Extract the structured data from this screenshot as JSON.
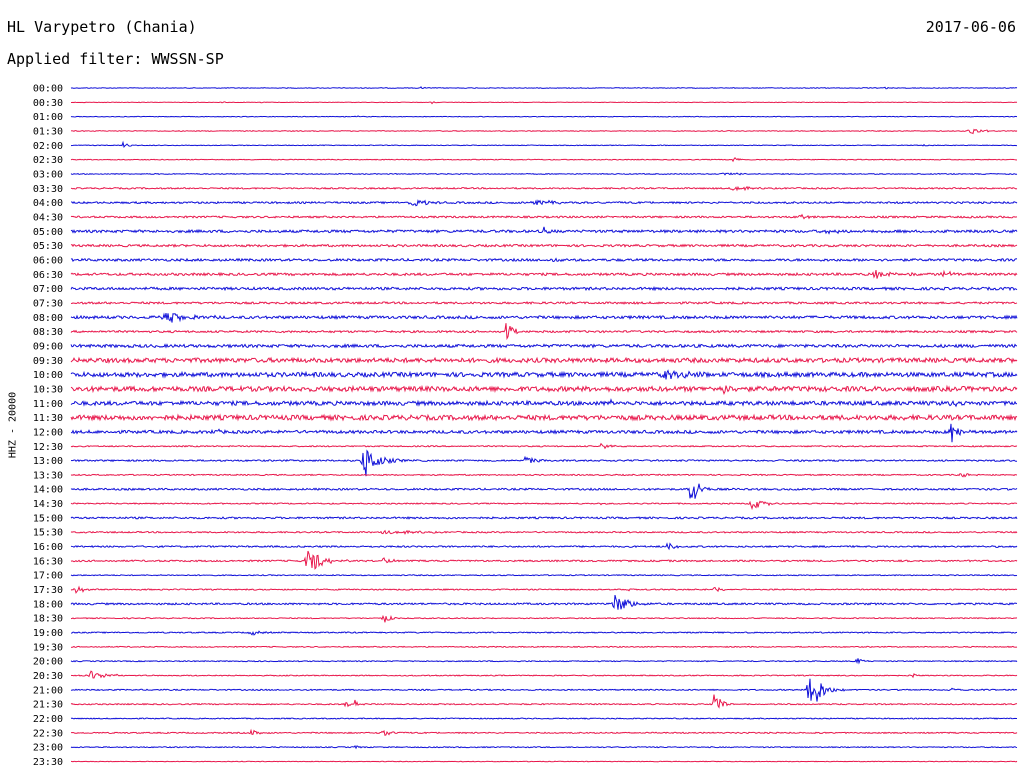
{
  "header": {
    "station": "HL Varypetro (Chania)",
    "date": "2017-06-06",
    "filter": "Applied filter: WWSSN-SP"
  },
  "chart_data": {
    "type": "line",
    "ylabel": "HHZ - 20000",
    "colors": [
      "#1010d8",
      "#e8184c"
    ],
    "rows": [
      {
        "label": "00:00",
        "noise": 0.35,
        "events": [
          {
            "x": 0.37,
            "amp": 1.5,
            "width": 0.003
          },
          {
            "x": 0.86,
            "amp": 1.2,
            "width": 0.003
          }
        ]
      },
      {
        "label": "00:30",
        "noise": 0.25,
        "events": [
          {
            "x": 0.16,
            "amp": 1.3,
            "width": 0.003
          },
          {
            "x": 0.2,
            "amp": 1.2,
            "width": 0.003
          },
          {
            "x": 0.38,
            "amp": 1.6,
            "width": 0.004
          },
          {
            "x": 0.52,
            "amp": 1.2,
            "width": 0.003
          }
        ]
      },
      {
        "label": "01:00",
        "noise": 0.3,
        "events": [
          {
            "x": 0.3,
            "amp": 1.4,
            "width": 0.004
          }
        ]
      },
      {
        "label": "01:30",
        "noise": 0.4,
        "events": [
          {
            "x": 0.95,
            "amp": 5,
            "width": 0.009
          }
        ]
      },
      {
        "label": "02:00",
        "noise": 0.35,
        "events": [
          {
            "x": 0.055,
            "amp": 4,
            "width": 0.004
          },
          {
            "x": 0.9,
            "amp": 1.3,
            "width": 0.004
          }
        ]
      },
      {
        "label": "02:30",
        "noise": 0.4,
        "events": [
          {
            "x": 0.7,
            "amp": 4,
            "width": 0.005
          }
        ]
      },
      {
        "label": "03:00",
        "noise": 0.45,
        "events": [
          {
            "x": 0.69,
            "amp": 2.5,
            "width": 0.01
          }
        ]
      },
      {
        "label": "03:30",
        "noise": 0.7,
        "events": [
          {
            "x": 0.7,
            "amp": 3,
            "width": 0.012
          }
        ]
      },
      {
        "label": "04:00",
        "noise": 0.9,
        "events": [
          {
            "x": 0.36,
            "amp": 5,
            "width": 0.012
          },
          {
            "x": 0.49,
            "amp": 2.5,
            "width": 0.02
          }
        ]
      },
      {
        "label": "04:30",
        "noise": 0.9,
        "events": [
          {
            "x": 0.77,
            "amp": 3,
            "width": 0.006
          }
        ]
      },
      {
        "label": "05:00",
        "noise": 1.3,
        "events": [
          {
            "x": 0.5,
            "amp": 4,
            "width": 0.004
          },
          {
            "x": 0.8,
            "amp": 2,
            "width": 0.02
          }
        ]
      },
      {
        "label": "05:30",
        "noise": 1.1,
        "events": []
      },
      {
        "label": "06:00",
        "noise": 1.2,
        "events": [
          {
            "x": 0.51,
            "amp": 4,
            "width": 0.005
          }
        ]
      },
      {
        "label": "06:30",
        "noise": 1.2,
        "events": [
          {
            "x": 0.85,
            "amp": 4,
            "width": 0.02
          },
          {
            "x": 0.92,
            "amp": 4,
            "width": 0.012
          }
        ]
      },
      {
        "label": "07:00",
        "noise": 1.3,
        "events": []
      },
      {
        "label": "07:30",
        "noise": 1.0,
        "events": []
      },
      {
        "label": "08:00",
        "noise": 1.4,
        "events": [
          {
            "x": 0.1,
            "amp": 6,
            "width": 0.02
          }
        ]
      },
      {
        "label": "08:30",
        "noise": 1.0,
        "events": [
          {
            "x": 0.46,
            "amp": 11,
            "width": 0.006
          }
        ]
      },
      {
        "label": "09:00",
        "noise": 1.5,
        "events": []
      },
      {
        "label": "09:30",
        "noise": 2.2,
        "events": []
      },
      {
        "label": "10:00",
        "noise": 2.2,
        "events": [
          {
            "x": 0.63,
            "amp": 4,
            "width": 0.03
          }
        ]
      },
      {
        "label": "10:30",
        "noise": 2.4,
        "events": [
          {
            "x": 0.69,
            "amp": 6,
            "width": 0.006
          }
        ]
      },
      {
        "label": "11:00",
        "noise": 2.0,
        "events": [
          {
            "x": 0.57,
            "amp": 5,
            "width": 0.006
          },
          {
            "x": 0.93,
            "amp": 3,
            "width": 0.01
          }
        ]
      },
      {
        "label": "11:30",
        "noise": 2.4,
        "events": []
      },
      {
        "label": "12:00",
        "noise": 1.5,
        "events": [
          {
            "x": 0.15,
            "amp": 4,
            "width": 0.006
          },
          {
            "x": 0.93,
            "amp": 13,
            "width": 0.008
          }
        ]
      },
      {
        "label": "12:30",
        "noise": 0.6,
        "events": [
          {
            "x": 0.56,
            "amp": 3,
            "width": 0.008
          }
        ]
      },
      {
        "label": "13:00",
        "noise": 0.8,
        "events": [
          {
            "x": 0.31,
            "amp": 20,
            "width": 0.012
          },
          {
            "x": 0.48,
            "amp": 4,
            "width": 0.01
          }
        ]
      },
      {
        "label": "13:30",
        "noise": 0.6,
        "events": [
          {
            "x": 0.94,
            "amp": 3,
            "width": 0.008
          }
        ]
      },
      {
        "label": "14:00",
        "noise": 0.9,
        "events": [
          {
            "x": 0.655,
            "amp": 22,
            "width": 0.007
          }
        ]
      },
      {
        "label": "14:30",
        "noise": 0.6,
        "events": [
          {
            "x": 0.72,
            "amp": 6,
            "width": 0.012
          },
          {
            "x": 0.56,
            "amp": 1.5,
            "width": 0.003
          }
        ]
      },
      {
        "label": "15:00",
        "noise": 0.9,
        "events": []
      },
      {
        "label": "15:30",
        "noise": 0.7,
        "events": [
          {
            "x": 0.33,
            "amp": 2,
            "width": 0.03
          }
        ]
      },
      {
        "label": "16:00",
        "noise": 0.8,
        "events": [
          {
            "x": 0.63,
            "amp": 4,
            "width": 0.008
          }
        ]
      },
      {
        "label": "16:30",
        "noise": 0.8,
        "events": [
          {
            "x": 0.25,
            "amp": 16,
            "width": 0.012
          },
          {
            "x": 0.33,
            "amp": 4,
            "width": 0.008
          }
        ]
      },
      {
        "label": "17:00",
        "noise": 0.5,
        "events": []
      },
      {
        "label": "17:30",
        "noise": 0.6,
        "events": [
          {
            "x": 0.005,
            "amp": 4,
            "width": 0.008
          },
          {
            "x": 0.59,
            "amp": 2,
            "width": 0.004
          },
          {
            "x": 0.68,
            "amp": 3,
            "width": 0.008
          }
        ]
      },
      {
        "label": "18:00",
        "noise": 0.9,
        "events": [
          {
            "x": 0.575,
            "amp": 12,
            "width": 0.012
          }
        ]
      },
      {
        "label": "18:30",
        "noise": 0.5,
        "events": [
          {
            "x": 0.33,
            "amp": 6,
            "width": 0.006
          }
        ]
      },
      {
        "label": "19:00",
        "noise": 0.6,
        "events": [
          {
            "x": 0.19,
            "amp": 3,
            "width": 0.008
          }
        ]
      },
      {
        "label": "19:30",
        "noise": 0.5,
        "events": []
      },
      {
        "label": "20:00",
        "noise": 0.5,
        "events": [
          {
            "x": 0.83,
            "amp": 4,
            "width": 0.005
          }
        ]
      },
      {
        "label": "20:30",
        "noise": 0.5,
        "events": [
          {
            "x": 0.02,
            "amp": 5,
            "width": 0.015
          },
          {
            "x": 0.89,
            "amp": 2,
            "width": 0.004
          }
        ]
      },
      {
        "label": "21:00",
        "noise": 0.6,
        "events": [
          {
            "x": 0.78,
            "amp": 30,
            "width": 0.01
          },
          {
            "x": 0.93,
            "amp": 2,
            "width": 0.008
          }
        ]
      },
      {
        "label": "21:30",
        "noise": 0.6,
        "events": [
          {
            "x": 0.29,
            "amp": 4,
            "width": 0.004
          },
          {
            "x": 0.3,
            "amp": 4,
            "width": 0.004
          },
          {
            "x": 0.68,
            "amp": 14,
            "width": 0.006
          }
        ]
      },
      {
        "label": "22:00",
        "noise": 0.5,
        "events": []
      },
      {
        "label": "22:30",
        "noise": 0.6,
        "events": [
          {
            "x": 0.19,
            "amp": 3,
            "width": 0.008
          },
          {
            "x": 0.33,
            "amp": 4,
            "width": 0.008
          }
        ]
      },
      {
        "label": "23:00",
        "noise": 0.5,
        "events": [
          {
            "x": 0.3,
            "amp": 2,
            "width": 0.004
          }
        ]
      },
      {
        "label": "23:30",
        "noise": 0.3,
        "events": []
      }
    ]
  }
}
